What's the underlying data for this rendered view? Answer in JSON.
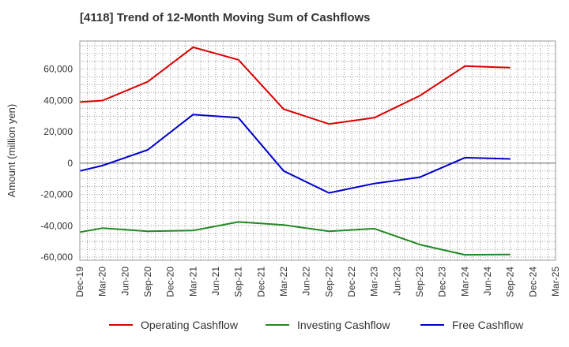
{
  "chart_data": {
    "type": "line",
    "title": "[4118]  Trend of 12-Month Moving Sum of Cashflows",
    "ylabel": "Amount (million yen)",
    "xlabel": "",
    "categories": [
      "Dec-19",
      "Mar-20",
      "Jun-20",
      "Sep-20",
      "Dec-20",
      "Mar-21",
      "Jun-21",
      "Sep-21",
      "Dec-21",
      "Mar-22",
      "Jun-22",
      "Sep-22",
      "Dec-22",
      "Mar-23",
      "Jun-23",
      "Sep-23",
      "Dec-23",
      "Mar-24",
      "Jun-24",
      "Sep-24",
      "Dec-24",
      "Mar-25"
    ],
    "ylim": [
      -62000,
      78000
    ],
    "yticks": [
      -60000,
      -40000,
      -20000,
      0,
      20000,
      40000,
      60000
    ],
    "ytick_labels": [
      "-60,000",
      "-40,000",
      "-20,000",
      "0",
      "20,000",
      "40,000",
      "60,000"
    ],
    "grid": true,
    "legend_position": "bottom",
    "series": [
      {
        "name": "Operating Cashflow",
        "color": "#dd0000",
        "x": [
          "Dec-19",
          "Mar-20",
          "Sep-20",
          "Mar-21",
          "Sep-21",
          "Mar-22",
          "Sep-22",
          "Mar-23",
          "Sep-23",
          "Mar-24",
          "Sep-24"
        ],
        "values": [
          39000,
          40000,
          52000,
          74000,
          66000,
          34500,
          25000,
          29000,
          43000,
          62000,
          61000
        ]
      },
      {
        "name": "Investing Cashflow",
        "color": "#228822",
        "x": [
          "Dec-19",
          "Mar-20",
          "Sep-20",
          "Mar-21",
          "Sep-21",
          "Mar-22",
          "Sep-22",
          "Mar-23",
          "Sep-23",
          "Mar-24",
          "Sep-24"
        ],
        "values": [
          -44000,
          -41500,
          -43500,
          -43000,
          -37500,
          -39500,
          -43500,
          -41800,
          -52000,
          -58500,
          -58300
        ]
      },
      {
        "name": "Free Cashflow",
        "color": "#0000cc",
        "x": [
          "Dec-19",
          "Mar-20",
          "Sep-20",
          "Mar-21",
          "Sep-21",
          "Mar-22",
          "Sep-22",
          "Mar-23",
          "Sep-23",
          "Mar-24",
          "Sep-24"
        ],
        "values": [
          -5000,
          -1500,
          8500,
          31000,
          29000,
          -5000,
          -19000,
          -13000,
          -9000,
          3500,
          2700
        ]
      }
    ]
  }
}
